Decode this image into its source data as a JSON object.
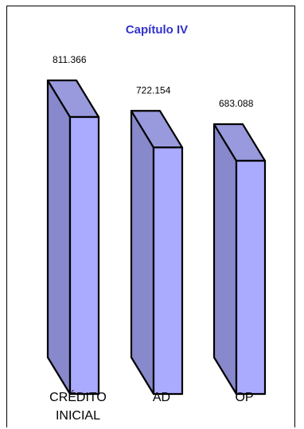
{
  "chart_data": {
    "type": "bar",
    "title": "Capítulo IV",
    "categories": [
      "CRÉDITO INICIAL",
      "AD",
      "OP"
    ],
    "category_lines": [
      [
        "CRÉDITO",
        "INICIAL"
      ],
      [
        "AD"
      ],
      [
        "OP"
      ]
    ],
    "values": [
      811366,
      722154,
      683088
    ],
    "value_labels": [
      "811.366",
      "722.154",
      "683.088"
    ],
    "ylim": [
      0,
      811366
    ],
    "grid": false,
    "legend": "none",
    "style": "3d-column"
  },
  "colors": {
    "title": "#3333cc",
    "bar_front": "#aaaaff",
    "bar_side": "#8888cc",
    "bar_top": "#9999dd",
    "outline": "#000000",
    "frame": "#000000"
  }
}
